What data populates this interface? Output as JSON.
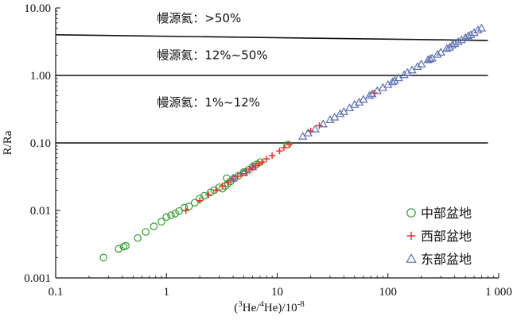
{
  "chart_data": {
    "type": "scatter",
    "x_scale": "log",
    "y_scale": "log",
    "xlim": [
      0.1,
      1000
    ],
    "ylim": [
      0.001,
      10
    ],
    "x_ticks": [
      0.1,
      1,
      10,
      100,
      1000
    ],
    "x_tick_labels": [
      "0.1",
      "1",
      "10",
      "100",
      "1 000"
    ],
    "y_ticks": [
      0.001,
      0.01,
      0.1,
      1,
      10
    ],
    "y_tick_labels": [
      "0.001",
      "0.01",
      "0.10",
      "1.00",
      "10.00"
    ],
    "ylabel": "R/Ra",
    "xlabel": {
      "base": "(",
      "sup1": "3",
      "mid": "He/",
      "sup2": "4",
      "mid2": "He)/10",
      "sup3": "-8"
    },
    "reference_lines": [
      {
        "x": [
          0.1,
          800
        ],
        "y": [
          4.0,
          3.3
        ]
      },
      {
        "x": [
          0.1,
          800
        ],
        "y": [
          1.0,
          1.0
        ]
      },
      {
        "x": [
          0.1,
          800
        ],
        "y": [
          0.1,
          0.1
        ]
      }
    ],
    "annotations": [
      {
        "text": "幔源氦：>50%",
        "x": 0.5,
        "y": 7.0
      },
      {
        "text": "幔源氦：12%~50%",
        "x": 0.5,
        "y": 2.0
      },
      {
        "text": "幔源氦：1%~12%",
        "x": 0.5,
        "y": 0.4
      }
    ],
    "series": [
      {
        "name": "中部盆地",
        "marker": "circle",
        "color": "#2ca02c",
        "points": [
          [
            0.27,
            0.002
          ],
          [
            0.37,
            0.0027
          ],
          [
            0.41,
            0.0029
          ],
          [
            0.43,
            0.003
          ],
          [
            0.55,
            0.0039
          ],
          [
            0.65,
            0.0048
          ],
          [
            0.77,
            0.0058
          ],
          [
            0.9,
            0.0068
          ],
          [
            1.0,
            0.008
          ],
          [
            1.1,
            0.0085
          ],
          [
            1.2,
            0.009
          ],
          [
            1.3,
            0.0098
          ],
          [
            1.45,
            0.011
          ],
          [
            1.6,
            0.0115
          ],
          [
            1.8,
            0.013
          ],
          [
            2.0,
            0.015
          ],
          [
            2.2,
            0.0165
          ],
          [
            2.5,
            0.0185
          ],
          [
            2.7,
            0.02
          ],
          [
            3.0,
            0.022
          ],
          [
            3.2,
            0.021
          ],
          [
            3.4,
            0.023
          ],
          [
            3.6,
            0.025
          ],
          [
            3.5,
            0.03
          ],
          [
            3.8,
            0.027
          ],
          [
            4.1,
            0.03
          ],
          [
            4.5,
            0.033
          ],
          [
            5.0,
            0.037
          ],
          [
            5.5,
            0.04
          ],
          [
            6.0,
            0.045
          ],
          [
            6.5,
            0.048
          ],
          [
            7.0,
            0.052
          ],
          [
            12.5,
            0.095
          ]
        ]
      },
      {
        "name": "西部盆地",
        "marker": "plus",
        "color": "#e8312a",
        "points": [
          [
            1.5,
            0.01
          ],
          [
            2.0,
            0.014
          ],
          [
            2.4,
            0.017
          ],
          [
            2.8,
            0.02
          ],
          [
            3.2,
            0.023
          ],
          [
            3.6,
            0.026
          ],
          [
            4.0,
            0.029
          ],
          [
            4.4,
            0.032
          ],
          [
            4.8,
            0.035
          ],
          [
            5.2,
            0.038
          ],
          [
            5.6,
            0.041
          ],
          [
            6.0,
            0.043
          ],
          [
            6.4,
            0.046
          ],
          [
            6.8,
            0.049
          ],
          [
            7.3,
            0.052
          ],
          [
            8.0,
            0.058
          ],
          [
            9.0,
            0.065
          ],
          [
            10.5,
            0.076
          ],
          [
            11.5,
            0.085
          ],
          [
            12.8,
            0.094
          ],
          [
            20.0,
            0.15
          ],
          [
            24.0,
            0.18
          ],
          [
            75.0,
            0.55
          ]
        ]
      },
      {
        "name": "东部盆地",
        "marker": "triangle",
        "color": "#5a6fb0",
        "points": [
          [
            4.0,
            0.03
          ],
          [
            5.0,
            0.036
          ],
          [
            6.0,
            0.044
          ],
          [
            17.0,
            0.125
          ],
          [
            19.0,
            0.14
          ],
          [
            22.0,
            0.16
          ],
          [
            26.0,
            0.19
          ],
          [
            30.0,
            0.22
          ],
          [
            33.0,
            0.24
          ],
          [
            37.0,
            0.27
          ],
          [
            40.0,
            0.29
          ],
          [
            45.0,
            0.33
          ],
          [
            50.0,
            0.37
          ],
          [
            55.0,
            0.4
          ],
          [
            60.0,
            0.44
          ],
          [
            68.0,
            0.5
          ],
          [
            72.0,
            0.53
          ],
          [
            80.0,
            0.59
          ],
          [
            90.0,
            0.66
          ],
          [
            100.0,
            0.73
          ],
          [
            110.0,
            0.8
          ],
          [
            115.0,
            0.84
          ],
          [
            125.0,
            0.92
          ],
          [
            140.0,
            1.02
          ],
          [
            150.0,
            1.1
          ],
          [
            165.0,
            1.2
          ],
          [
            185.0,
            1.35
          ],
          [
            200.0,
            1.47
          ],
          [
            230.0,
            1.7
          ],
          [
            240.0,
            1.75
          ],
          [
            250.0,
            1.8
          ],
          [
            280.0,
            2.05
          ],
          [
            300.0,
            2.2
          ],
          [
            340.0,
            2.5
          ],
          [
            360.0,
            2.6
          ],
          [
            380.0,
            2.8
          ],
          [
            400.0,
            2.95
          ],
          [
            430.0,
            3.15
          ],
          [
            460.0,
            3.35
          ],
          [
            500.0,
            3.6
          ],
          [
            530.0,
            3.85
          ],
          [
            560.0,
            4.0
          ],
          [
            600.0,
            4.3
          ],
          [
            650.0,
            4.7
          ],
          [
            700.0,
            5.0
          ]
        ]
      }
    ],
    "legend_position": "bottom-right"
  }
}
